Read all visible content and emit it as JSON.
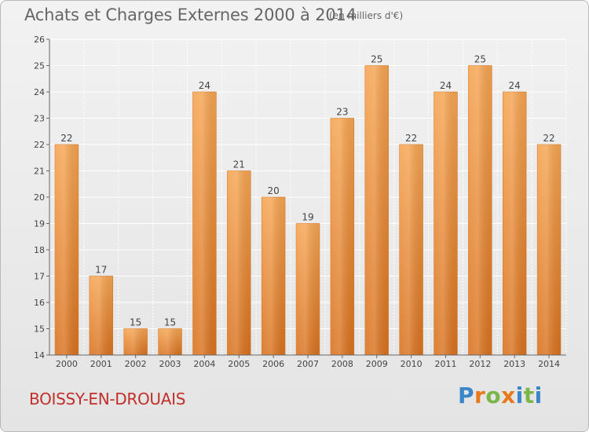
{
  "chart_data": {
    "type": "bar",
    "title": "Achats et Charges Externes 2000 à 2014",
    "subtitle": "(en milliers d'€)",
    "categories": [
      "2000",
      "2001",
      "2002",
      "2003",
      "2004",
      "2005",
      "2006",
      "2007",
      "2008",
      "2009",
      "2010",
      "2011",
      "2012",
      "2013",
      "2014"
    ],
    "values": [
      22,
      17,
      15,
      15,
      24,
      21,
      20,
      19,
      23,
      25,
      22,
      24,
      25,
      24,
      22
    ],
    "data_labels": [
      "22",
      "17",
      "15",
      "15",
      "24",
      "21",
      "20",
      "19",
      "23",
      "25",
      "22",
      "24",
      "25",
      "24",
      "22"
    ],
    "ylim": [
      14,
      26
    ],
    "yticks": [
      14,
      15,
      16,
      17,
      18,
      19,
      20,
      21,
      22,
      23,
      24,
      25,
      26
    ],
    "ytick_labels": [
      "14",
      "15",
      "16",
      "17",
      "18",
      "19",
      "20",
      "21",
      "22",
      "23",
      "24",
      "25",
      "26"
    ],
    "xlabel": "",
    "ylabel": "",
    "grid": true,
    "legend": "none",
    "bar_color": "#ee8a33",
    "grid_color": "#ffffff"
  },
  "footer": {
    "commune": "BOISSY-EN-DROUAIS",
    "logo_letters": [
      "P",
      "r",
      "o",
      "x",
      "i",
      "t",
      "i"
    ]
  }
}
